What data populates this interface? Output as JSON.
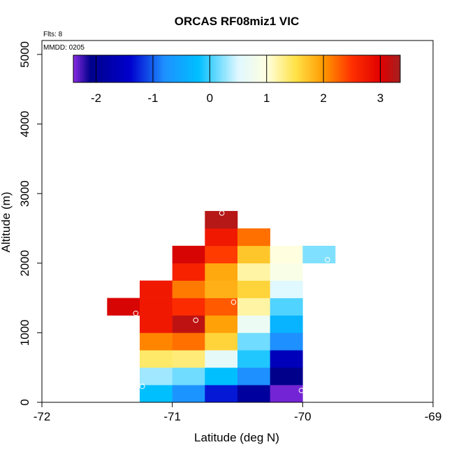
{
  "chart_data": {
    "type": "heatmap",
    "title": "ORCAS RF08miz1 VIC",
    "xlabel": "Latitude (deg N)",
    "ylabel": "Altitude (m)",
    "xlim": [
      -72,
      -69
    ],
    "ylim": [
      0,
      5200
    ],
    "xticks": [
      "-72",
      "-71",
      "-70",
      "-69"
    ],
    "xtick_values": [
      -72,
      -71,
      -70,
      -69
    ],
    "yticks": [
      "0",
      "1000",
      "2000",
      "3000",
      "4000",
      "5000"
    ],
    "ytick_values": [
      0,
      1000,
      2000,
      3000,
      4000,
      5000
    ],
    "flights_label": "Flts: 8",
    "date_label": "MMDD: 0205",
    "colorbar": {
      "range": [
        -2.4,
        3.35
      ],
      "ticks": [
        "-2",
        "-1",
        "0",
        "1",
        "2",
        "3"
      ],
      "tick_values": [
        -2,
        -1,
        0,
        1,
        2,
        3
      ]
    },
    "bin_size": {
      "lat": 0.25,
      "alt": 250
    },
    "cells": [
      {
        "lat": -71.25,
        "alt": 0,
        "v": -0.2
      },
      {
        "lat": -71.0,
        "alt": 0,
        "v": -0.75
      },
      {
        "lat": -70.75,
        "alt": 0,
        "v": -1.3
      },
      {
        "lat": -70.5,
        "alt": 0,
        "v": -1.9
      },
      {
        "lat": -70.25,
        "alt": 0,
        "v": -2.35
      },
      {
        "lat": -71.25,
        "alt": 250,
        "v": 0.3
      },
      {
        "lat": -71.0,
        "alt": 250,
        "v": 0.15
      },
      {
        "lat": -70.75,
        "alt": 250,
        "v": -0.2
      },
      {
        "lat": -70.5,
        "alt": 250,
        "v": -0.8
      },
      {
        "lat": -70.25,
        "alt": 250,
        "v": -2.1
      },
      {
        "lat": -71.25,
        "alt": 500,
        "v": 1.4
      },
      {
        "lat": -71.0,
        "alt": 500,
        "v": 1.35
      },
      {
        "lat": -70.75,
        "alt": 500,
        "v": 0.6
      },
      {
        "lat": -70.5,
        "alt": 500,
        "v": -0.1
      },
      {
        "lat": -70.25,
        "alt": 500,
        "v": -1.6
      },
      {
        "lat": -71.25,
        "alt": 750,
        "v": 2.1
      },
      {
        "lat": -71.0,
        "alt": 750,
        "v": 2.2
      },
      {
        "lat": -70.75,
        "alt": 750,
        "v": 1.6
      },
      {
        "lat": -70.5,
        "alt": 750,
        "v": 0.15
      },
      {
        "lat": -70.25,
        "alt": 750,
        "v": -0.8
      },
      {
        "lat": -71.25,
        "alt": 1000,
        "v": 2.75
      },
      {
        "lat": -71.0,
        "alt": 1000,
        "v": 3.2
      },
      {
        "lat": -70.75,
        "alt": 1000,
        "v": 1.95
      },
      {
        "lat": -70.5,
        "alt": 1000,
        "v": 0.7
      },
      {
        "lat": -70.25,
        "alt": 1000,
        "v": -0.35
      },
      {
        "lat": -71.5,
        "alt": 1250,
        "v": 3.05
      },
      {
        "lat": -71.25,
        "alt": 1250,
        "v": 2.75
      },
      {
        "lat": -71.0,
        "alt": 1250,
        "v": 2.55
      },
      {
        "lat": -70.75,
        "alt": 1250,
        "v": 2.3
      },
      {
        "lat": -70.5,
        "alt": 1250,
        "v": 1.2
      },
      {
        "lat": -70.25,
        "alt": 1250,
        "v": 0.05
      },
      {
        "lat": -71.25,
        "alt": 1500,
        "v": 2.75
      },
      {
        "lat": -71.0,
        "alt": 1500,
        "v": 2.15
      },
      {
        "lat": -70.75,
        "alt": 1500,
        "v": 1.85
      },
      {
        "lat": -70.5,
        "alt": 1500,
        "v": 1.6
      },
      {
        "lat": -70.25,
        "alt": 1500,
        "v": 0.5
      },
      {
        "lat": -71.0,
        "alt": 1750,
        "v": 2.65
      },
      {
        "lat": -70.75,
        "alt": 1750,
        "v": 1.9
      },
      {
        "lat": -70.5,
        "alt": 1750,
        "v": 1.2
      },
      {
        "lat": -70.25,
        "alt": 1750,
        "v": 0.9
      },
      {
        "lat": -71.0,
        "alt": 2000,
        "v": 3.05
      },
      {
        "lat": -70.75,
        "alt": 2000,
        "v": 2.45
      },
      {
        "lat": -70.5,
        "alt": 2000,
        "v": 1.7
      },
      {
        "lat": -70.25,
        "alt": 2000,
        "v": 1.0
      },
      {
        "lat": -70.0,
        "alt": 2000,
        "v": 0.2
      },
      {
        "lat": -70.75,
        "alt": 2250,
        "v": 2.75
      },
      {
        "lat": -70.5,
        "alt": 2250,
        "v": 2.2
      },
      {
        "lat": -70.75,
        "alt": 2500,
        "v": 3.25
      }
    ],
    "points": [
      {
        "lat": -70.62,
        "alt": 2720
      },
      {
        "lat": -69.81,
        "alt": 2050
      },
      {
        "lat": -70.53,
        "alt": 1440
      },
      {
        "lat": -71.28,
        "alt": 1280
      },
      {
        "lat": -70.82,
        "alt": 1180
      },
      {
        "lat": -71.23,
        "alt": 230
      },
      {
        "lat": -70.01,
        "alt": 170
      }
    ]
  },
  "colors": {
    "stops": [
      [
        -2.4,
        "#8a2be2"
      ],
      [
        -2.1,
        "#00008b"
      ],
      [
        -1.4,
        "#0000cd"
      ],
      [
        -0.8,
        "#1e90ff"
      ],
      [
        -0.2,
        "#00bfff"
      ],
      [
        0.5,
        "#e0f8ff"
      ],
      [
        1.0,
        "#ffffe0"
      ],
      [
        1.5,
        "#ffe34a"
      ],
      [
        2.0,
        "#ff9a00"
      ],
      [
        2.5,
        "#ff3000"
      ],
      [
        3.0,
        "#e00000"
      ],
      [
        3.35,
        "#a52020"
      ]
    ]
  }
}
